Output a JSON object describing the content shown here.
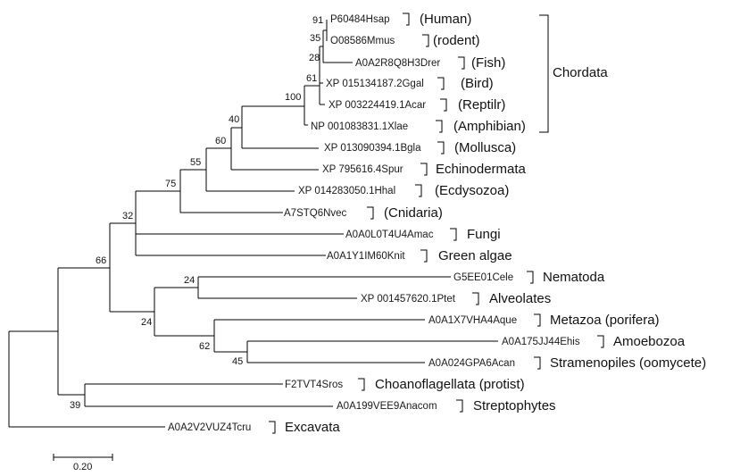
{
  "tree": {
    "tips": [
      {
        "id": "P60484Hsap",
        "group": "(Human)"
      },
      {
        "id": "O08586Mmus",
        "group": "(rodent)"
      },
      {
        "id": "A0A2R8Q8H3Drer",
        "group": "(Fish)"
      },
      {
        "id": "XP 015134187.2Ggal",
        "group": "(Bird)"
      },
      {
        "id": "XP 003224419.1Acar",
        "group": "(Reptilr)"
      },
      {
        "id": "NP 001083831.1Xlae",
        "group": "(Amphibian)"
      },
      {
        "id": "XP 013090394.1Bgla",
        "group": "(Mollusca)"
      },
      {
        "id": "XP 795616.4Spur",
        "group": "Echinodermata"
      },
      {
        "id": "XP 014283050.1Hhal",
        "group": "(Ecdysozoa)"
      },
      {
        "id": "A7STQ6Nvec",
        "group": "(Cnidaria)"
      },
      {
        "id": "A0A0L0T4U4Amac",
        "group": "Fungi"
      },
      {
        "id": "A0A1Y1IM60Knit",
        "group": "Green algae"
      },
      {
        "id": "G5EE01Cele",
        "group": "Nematoda"
      },
      {
        "id": "XP 001457620.1Ptet",
        "group": "Alveolates"
      },
      {
        "id": "A0A1X7VHA4Aque",
        "group": "Metazoa (porifera)"
      },
      {
        "id": "A0A175JJ44Ehis",
        "group": "Amoebozoa"
      },
      {
        "id": "A0A024GPA6Acan",
        "group": "Stramenopiles (oomycete)"
      },
      {
        "id": "F2TVT4Sros",
        "group": "Choanoflagellata (protist)"
      },
      {
        "id": "A0A199VEE9Anacom",
        "group": "Streptophytes"
      },
      {
        "id": "A0A2V2VUZ4Tcru",
        "group": "Excavata"
      }
    ],
    "bootstrap": [
      "91",
      "35",
      "28",
      "61",
      "100",
      "40",
      "60",
      "55",
      "75",
      "32",
      "66",
      "24",
      "24",
      "62",
      "45",
      "39"
    ],
    "clade_label": "Chordata",
    "scale_bar": "0.20"
  }
}
